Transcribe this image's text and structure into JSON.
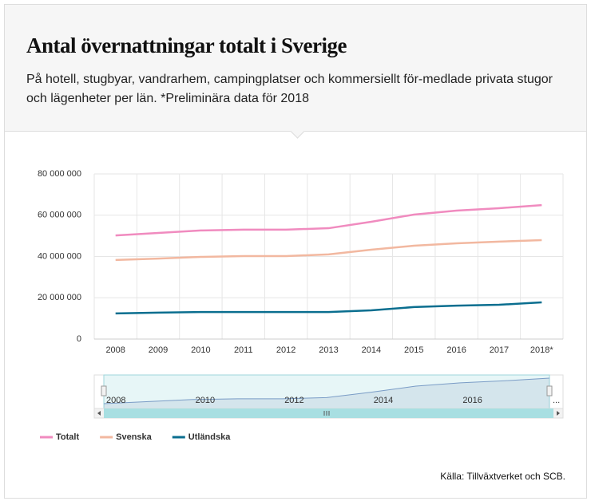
{
  "chart_data": {
    "type": "line",
    "title": "Antal övernattningar totalt i Sverige",
    "subtitle": "På hotell, stugbyar, vandrarhem, campingplatser och kommersiellt för-medlade privata stugor och lägenheter per län. *Preliminära data för 2018",
    "source": "Källa: Tillväxtverket och SCB.",
    "categories": [
      "2008",
      "2009",
      "2010",
      "2011",
      "2012",
      "2013",
      "2014",
      "2015",
      "2016",
      "2017",
      "2018*"
    ],
    "series": [
      {
        "name": "Totalt",
        "color": "#f08bbf",
        "values": [
          50200000,
          51400000,
          52600000,
          53000000,
          53000000,
          53700000,
          56800000,
          60300000,
          62200000,
          63400000,
          64900000
        ]
      },
      {
        "name": "Svenska",
        "color": "#f2b8a0",
        "values": [
          38300000,
          39000000,
          39800000,
          40200000,
          40200000,
          41000000,
          43300000,
          45200000,
          46400000,
          47200000,
          47900000
        ]
      },
      {
        "name": "Utländska",
        "color": "#0a6e8f",
        "values": [
          12400000,
          12800000,
          13100000,
          13100000,
          13100000,
          13100000,
          13900000,
          15500000,
          16200000,
          16600000,
          17800000
        ]
      }
    ],
    "ylim": [
      0,
      80000000
    ],
    "yticks": [
      0,
      {
        "value": 20000000,
        "label": "20 000 000"
      },
      {
        "value": 40000000,
        "label": "40 000 000"
      },
      {
        "value": 60000000,
        "label": "60 000 000"
      },
      {
        "value": 80000000,
        "label": "80 000 000"
      }
    ],
    "grid": true,
    "legend": "bottom-left",
    "navigator": {
      "labels": [
        "2008",
        "2010",
        "2012",
        "2014",
        "2016",
        "..."
      ]
    }
  }
}
